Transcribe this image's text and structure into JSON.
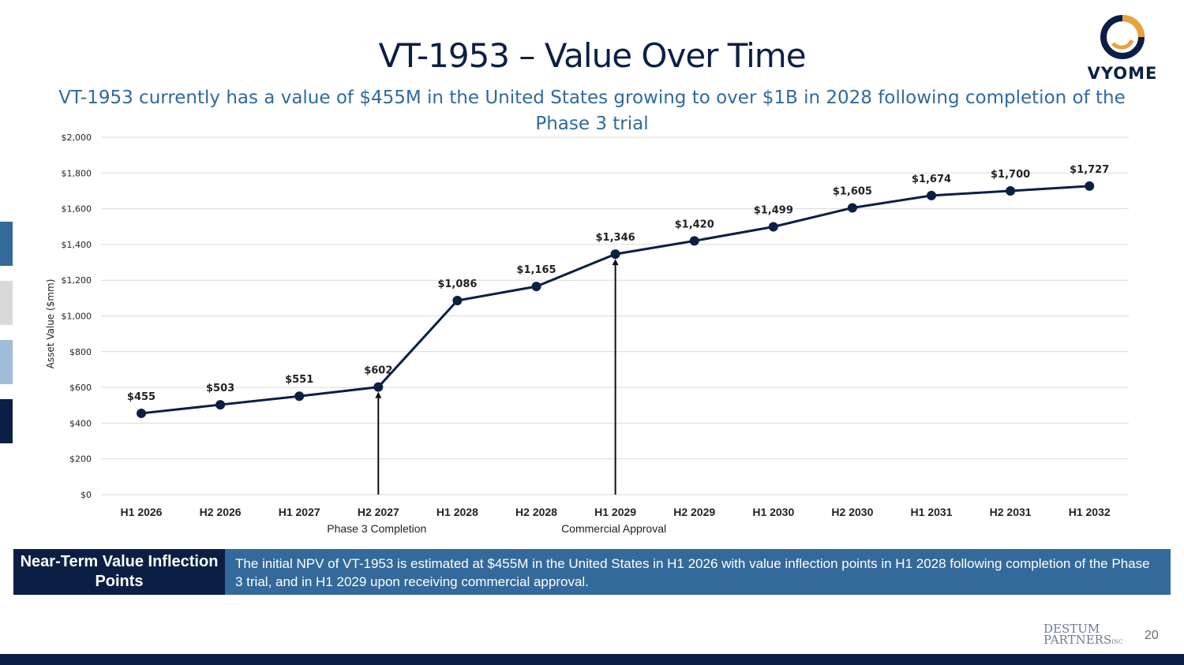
{
  "slide": {
    "title": "VT-1953 – Value Over Time",
    "subtitle": "VT-1953 currently has a value of $455M in the United States growing to over $1B in 2028 following completion of the Phase 3 trial",
    "page_number": "20"
  },
  "logo": {
    "brand": "VYOME",
    "icon": "vyome-ring-icon"
  },
  "footer_logo": {
    "line1": "DESTUM",
    "line2": "PARTNERS",
    "suffix": "INC"
  },
  "callout": {
    "heading": "Near-Term Value Inflection Points",
    "body": "The initial NPV of VT-1953 is estimated at $455M in the United States in H1 2026 with value inflection points in H1 2028 following completion of the Phase 3 trial, and in H1 2029 upon receiving commercial approval."
  },
  "colors": {
    "navy": "#0b1f45",
    "blue": "#34699b",
    "subtitle_blue": "#2f6a9e",
    "line": "#0b1f45",
    "grid": "#d9d9d9",
    "side_tabs": [
      "#34699b",
      "#d9d9d9",
      "#9fbcd9",
      "#0b1f45"
    ]
  },
  "chart_data": {
    "type": "line",
    "title": "",
    "xlabel": "",
    "ylabel": "Asset Value ($mm)",
    "ylim": [
      0,
      2000
    ],
    "yticks": [
      0,
      200,
      400,
      600,
      800,
      1000,
      1200,
      1400,
      1600,
      1800,
      2000
    ],
    "ytick_labels": [
      "$0",
      "$200",
      "$400",
      "$600",
      "$800",
      "$1,000",
      "$1,200",
      "$1,400",
      "$1,600",
      "$1,800",
      "$2,000"
    ],
    "categories": [
      "H1 2026",
      "H2 2026",
      "H1 2027",
      "H2 2027",
      "H1 2028",
      "H2 2028",
      "H1 2029",
      "H2 2029",
      "H1 2030",
      "H2 2030",
      "H1 2031",
      "H2 2031",
      "H1 2032"
    ],
    "series": [
      {
        "name": "Asset Value",
        "values": [
          455,
          503,
          551,
          602,
          1086,
          1165,
          1346,
          1420,
          1499,
          1605,
          1674,
          1700,
          1727
        ],
        "labels": [
          "$455",
          "$503",
          "$551",
          "$602",
          "$1,086",
          "$1,165",
          "$1,346",
          "$1,420",
          "$1,499",
          "$1,605",
          "$1,674",
          "$1,700",
          "$1,727"
        ]
      }
    ],
    "annotations": [
      {
        "category": "H2 2027",
        "text": "Phase 3 Completion"
      },
      {
        "category": "H1 2029",
        "text": "Commercial Approval"
      }
    ],
    "grid": true,
    "legend": "none"
  }
}
